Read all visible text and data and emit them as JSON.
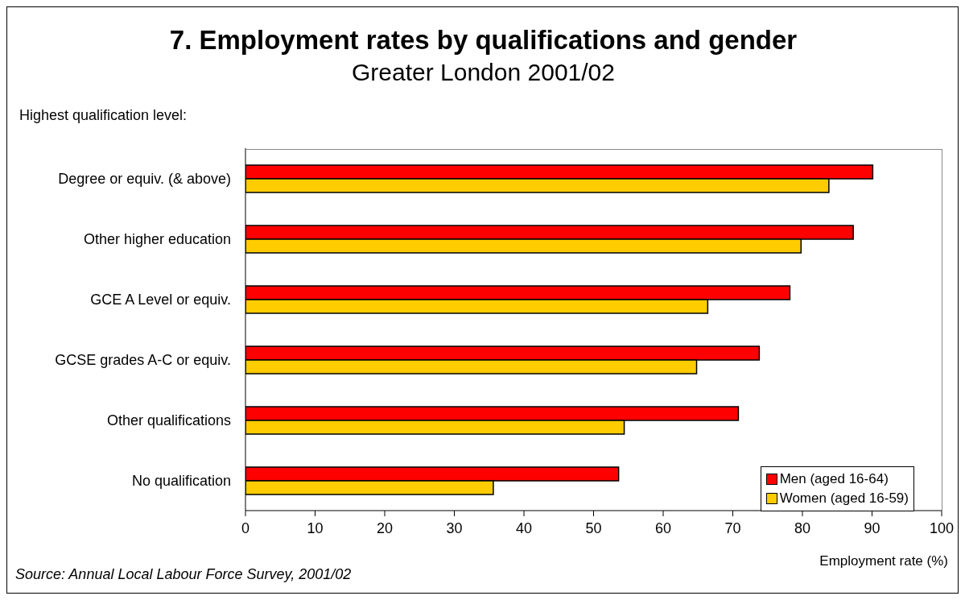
{
  "chart_data": {
    "type": "bar",
    "orientation": "horizontal",
    "title": "7. Employment rates by qualifications and gender",
    "subtitle": "Greater London 2001/02",
    "ylabel": "Highest qualification level:",
    "xlabel": "Employment rate (%)",
    "categories": [
      "Degree or equiv. (& above)",
      "Other higher education",
      "GCE A Level or equiv.",
      "GCSE grades A-C or equiv.",
      "Other qualifications",
      "No qualification"
    ],
    "series": [
      {
        "name": "Men (aged 16-64)",
        "color": "#ff0000",
        "values": [
          90.1,
          87.3,
          78.2,
          73.8,
          70.8,
          53.6
        ]
      },
      {
        "name": "Women (aged 16-59)",
        "color": "#ffcc00",
        "values": [
          83.8,
          79.8,
          66.4,
          64.8,
          54.4,
          35.6
        ]
      }
    ],
    "xlim": [
      0,
      100
    ],
    "xticks": [
      0,
      10,
      20,
      30,
      40,
      50,
      60,
      70,
      80,
      90,
      100
    ],
    "grid": false,
    "legend": "bottom right",
    "annotations": [
      "Source: Annual Local Labour Force Survey, 2001/02"
    ]
  }
}
